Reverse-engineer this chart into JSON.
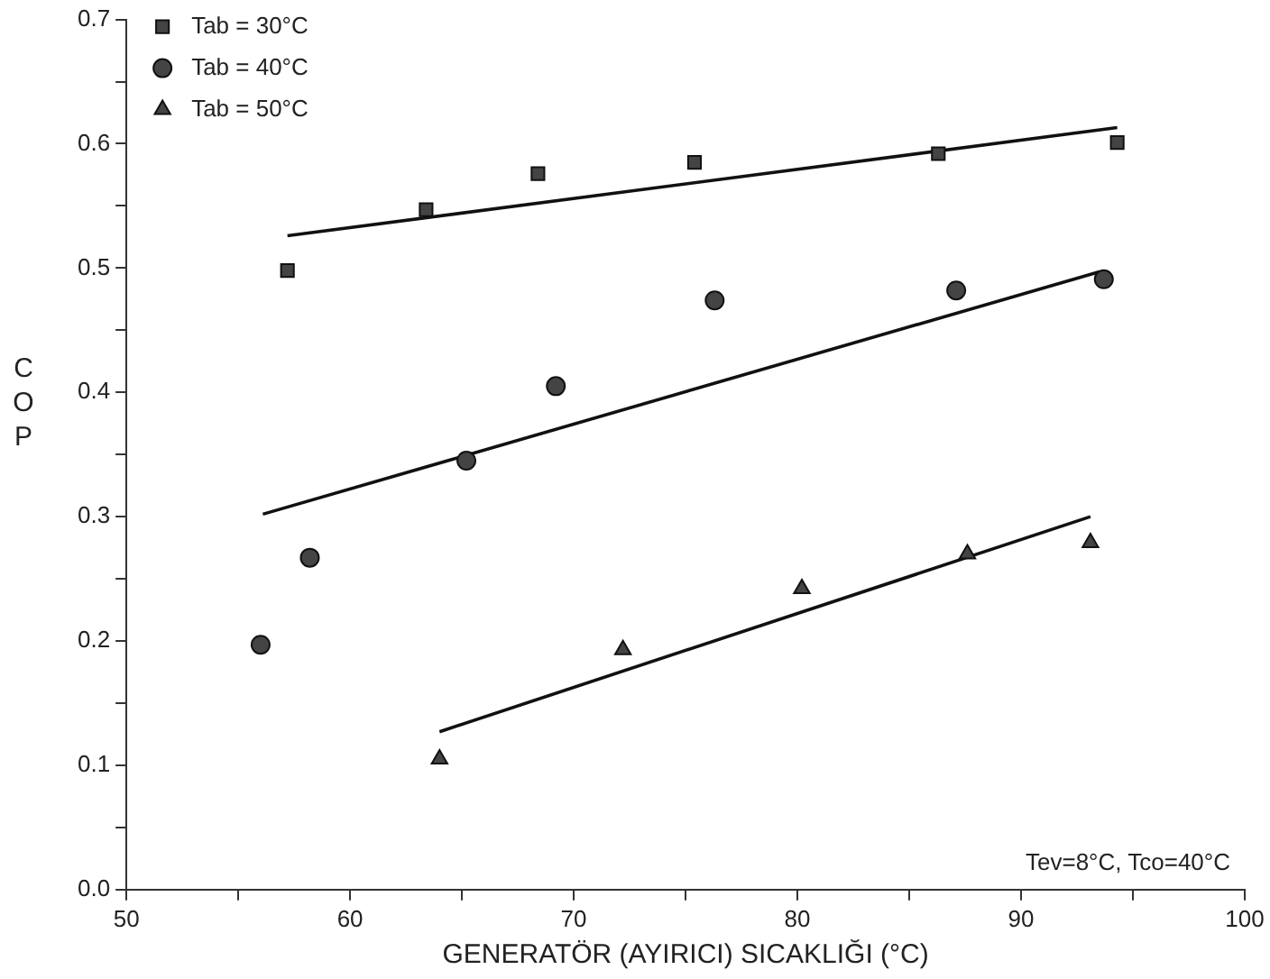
{
  "chart_data": {
    "type": "scatter",
    "xlabel": "GENERATÖR (AYIRICI) SICAKLIĞI (°C)",
    "ylabel": "COP",
    "annotations": [
      "Tev=8°C, Tco=40°C"
    ],
    "xlim": [
      50,
      100
    ],
    "xticks": [
      50,
      {
        "value": 55,
        "label": null
      },
      60,
      {
        "value": 65,
        "label": null
      },
      70,
      {
        "value": 75,
        "label": null
      },
      80,
      {
        "value": 85,
        "label": null
      },
      90,
      {
        "value": 95,
        "label": null
      },
      100
    ],
    "ylim": [
      0,
      0.7
    ],
    "yticks": [
      "0.0",
      {
        "value": 0.05,
        "label": null
      },
      {
        "value": 0.1,
        "label": "0.1"
      },
      {
        "value": 0.15,
        "label": null
      },
      {
        "value": 0.2,
        "label": "0.2"
      },
      {
        "value": 0.25,
        "label": null
      },
      {
        "value": 0.3,
        "label": "0.3"
      },
      {
        "value": 0.35,
        "label": null
      },
      {
        "value": 0.4,
        "label": "0.4"
      },
      {
        "value": 0.45,
        "label": null
      },
      {
        "value": 0.5,
        "label": "0.5"
      },
      {
        "value": 0.55,
        "label": null
      },
      {
        "value": 0.6,
        "label": "0.6"
      },
      {
        "value": 0.65,
        "label": null
      },
      {
        "value": 0.7,
        "label": "0.7"
      }
    ],
    "grid": false,
    "legend": "top left",
    "series": [
      {
        "name": "Tab = 30°C",
        "color": "#444444",
        "marker": "square",
        "x": [
          57.2,
          63.4,
          68.4,
          75.4,
          86.3,
          94.3
        ],
        "values": [
          0.498,
          0.547,
          0.576,
          0.585,
          0.592,
          0.601
        ]
      },
      {
        "name": "Tab = 40°C",
        "color": "#444444",
        "marker": "circle",
        "x": [
          56.0,
          58.2,
          65.2,
          69.2,
          76.3,
          87.1,
          93.7
        ],
        "values": [
          0.197,
          0.267,
          0.345,
          0.405,
          0.474,
          0.482,
          0.491
        ]
      },
      {
        "name": "Tab = 50°C",
        "color": "#444444",
        "marker": "triangle",
        "x": [
          64.0,
          72.2,
          80.2,
          87.6,
          93.1
        ],
        "values": [
          0.105,
          0.193,
          0.242,
          0.27,
          0.279
        ]
      },
      {
        "type": "line",
        "color": "#111111",
        "marker": "none",
        "x": [
          57.2,
          94.3
        ],
        "values": [
          0.526,
          0.613
        ]
      },
      {
        "type": "line",
        "color": "#111111",
        "marker": "none",
        "x": [
          56.1,
          93.5
        ],
        "values": [
          0.302,
          0.497
        ]
      },
      {
        "type": "line",
        "color": "#111111",
        "marker": "none",
        "x": [
          64.0,
          93.1
        ],
        "values": [
          0.127,
          0.3
        ]
      }
    ]
  }
}
